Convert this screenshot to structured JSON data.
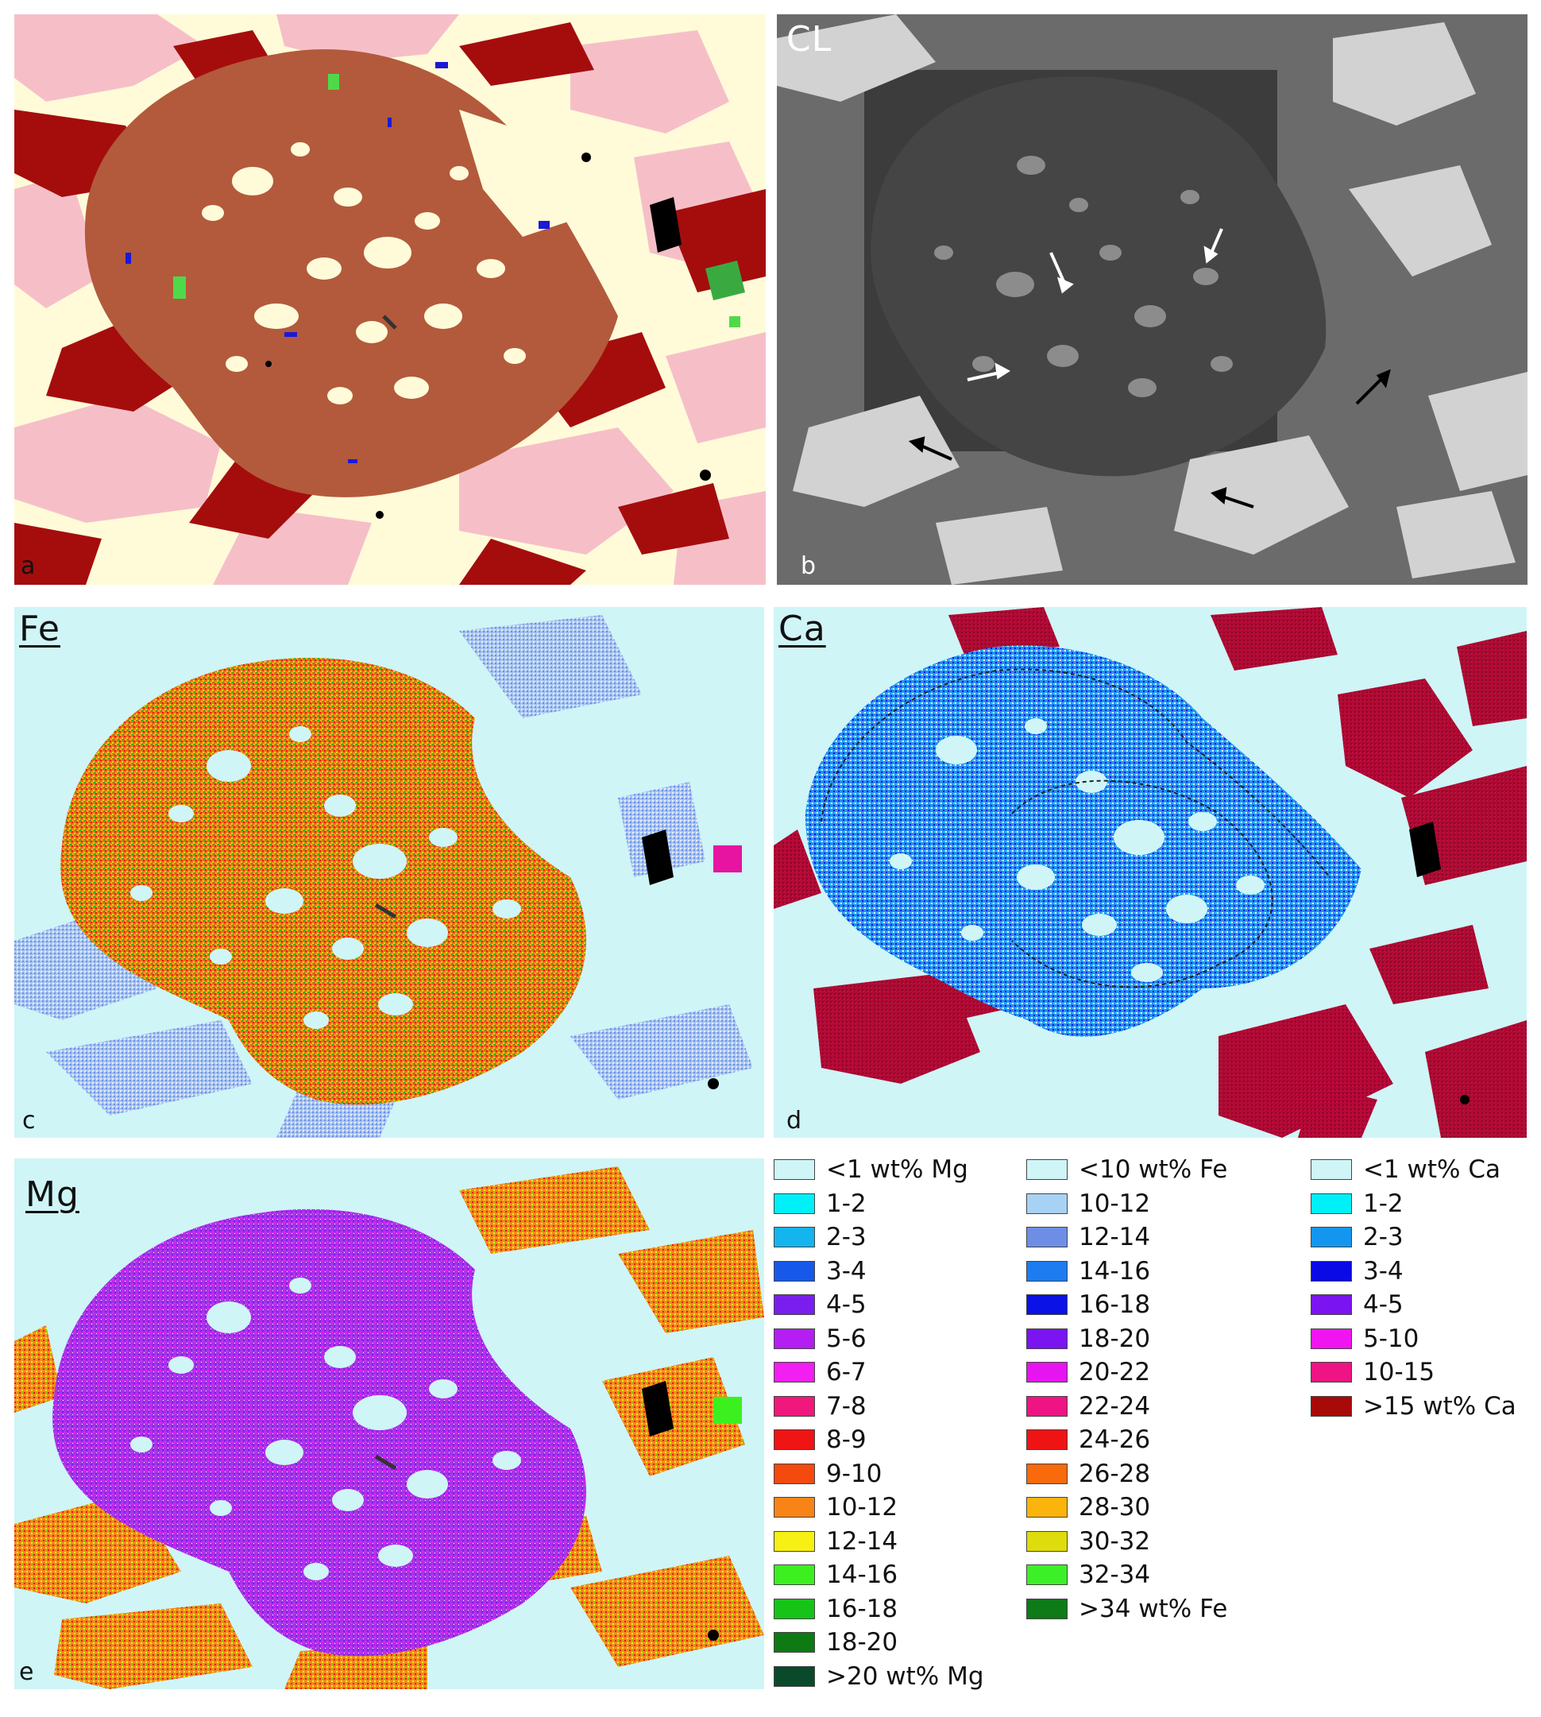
{
  "panels": {
    "a": {
      "corner_label": "a"
    },
    "b": {
      "title": "CL",
      "corner_label": "b"
    },
    "c": {
      "title": "Fe",
      "corner_label": "c"
    },
    "d": {
      "title": "Ca",
      "corner_label": "d"
    },
    "e": {
      "title": "Mg",
      "corner_label": "e"
    }
  },
  "colors": {
    "phase_map": {
      "garnet": "#b35a3c",
      "matrix": "#fffbd9",
      "pink": "#f6bfc8",
      "dark_red": "#a50d0d",
      "blue": "#1a1ad6",
      "green": "#4fd94a",
      "black": "#000000"
    },
    "cl": {
      "background": "#3c3c3c",
      "mid": "#6b6b6b",
      "bright": "#d2d2d2"
    },
    "fe_map": {
      "background": "#cff5f7",
      "garnet": "#e8741a",
      "matrix_blue": "#8fb0ea"
    },
    "ca_map": {
      "background": "#cff5f7",
      "garnet": "#2a8ff0",
      "dark_red": "#b10a34"
    },
    "mg_map": {
      "background": "#cff5f7",
      "garnet": "#a534e6",
      "orange": "#f08a1c"
    }
  },
  "legends": [
    {
      "items": [
        {
          "label": "<1 wt% Mg",
          "color": "#cff5f7"
        },
        {
          "label": "1-2",
          "color": "#00f0f8"
        },
        {
          "label": "2-3",
          "color": "#14b4ee"
        },
        {
          "label": "3-4",
          "color": "#1659ea"
        },
        {
          "label": "4-5",
          "color": "#7a1ef0"
        },
        {
          "label": "5-6",
          "color": "#b41ef2"
        },
        {
          "label": "6-7",
          "color": "#f21ef2"
        },
        {
          "label": "7-8",
          "color": "#f0187c"
        },
        {
          "label": "8-9",
          "color": "#f01414"
        },
        {
          "label": "9-10",
          "color": "#f44a0e"
        },
        {
          "label": "10-12",
          "color": "#f88418"
        },
        {
          "label": "12-14",
          "color": "#f6f014"
        },
        {
          "label": "14-16",
          "color": "#3cf020"
        },
        {
          "label": "16-18",
          "color": "#16c418"
        },
        {
          "label": "18-20",
          "color": "#0e7a14"
        },
        {
          "label": ">20 wt% Mg",
          "color": "#0a4a2a"
        }
      ]
    },
    {
      "items": [
        {
          "label": "<10 wt% Fe",
          "color": "#cff5f7"
        },
        {
          "label": "10-12",
          "color": "#a8d2f4"
        },
        {
          "label": "12-14",
          "color": "#6e8ee6"
        },
        {
          "label": "14-16",
          "color": "#1c7cf0"
        },
        {
          "label": "16-18",
          "color": "#0a12e6"
        },
        {
          "label": "18-20",
          "color": "#7a14f0"
        },
        {
          "label": "20-22",
          "color": "#e614f0"
        },
        {
          "label": "22-24",
          "color": "#ee1484"
        },
        {
          "label": "24-26",
          "color": "#ee1414"
        },
        {
          "label": "26-28",
          "color": "#f86a0c"
        },
        {
          "label": "28-30",
          "color": "#fab40c"
        },
        {
          "label": "30-32",
          "color": "#dedc0c"
        },
        {
          "label": "32-34",
          "color": "#3cf028"
        },
        {
          "label": ">34 wt% Fe",
          "color": "#0e7a18"
        }
      ]
    },
    {
      "items": [
        {
          "label": "<1 wt% Ca",
          "color": "#cff5f7"
        },
        {
          "label": "1-2",
          "color": "#00f0f8"
        },
        {
          "label": "2-3",
          "color": "#1496ee"
        },
        {
          "label": "3-4",
          "color": "#0a0ae6"
        },
        {
          "label": "4-5",
          "color": "#7a14f0"
        },
        {
          "label": "5-10",
          "color": "#f014f0"
        },
        {
          "label": "10-15",
          "color": "#ee1484"
        },
        {
          "label": ">15 wt% Ca",
          "color": "#a80a0a"
        }
      ]
    }
  ]
}
